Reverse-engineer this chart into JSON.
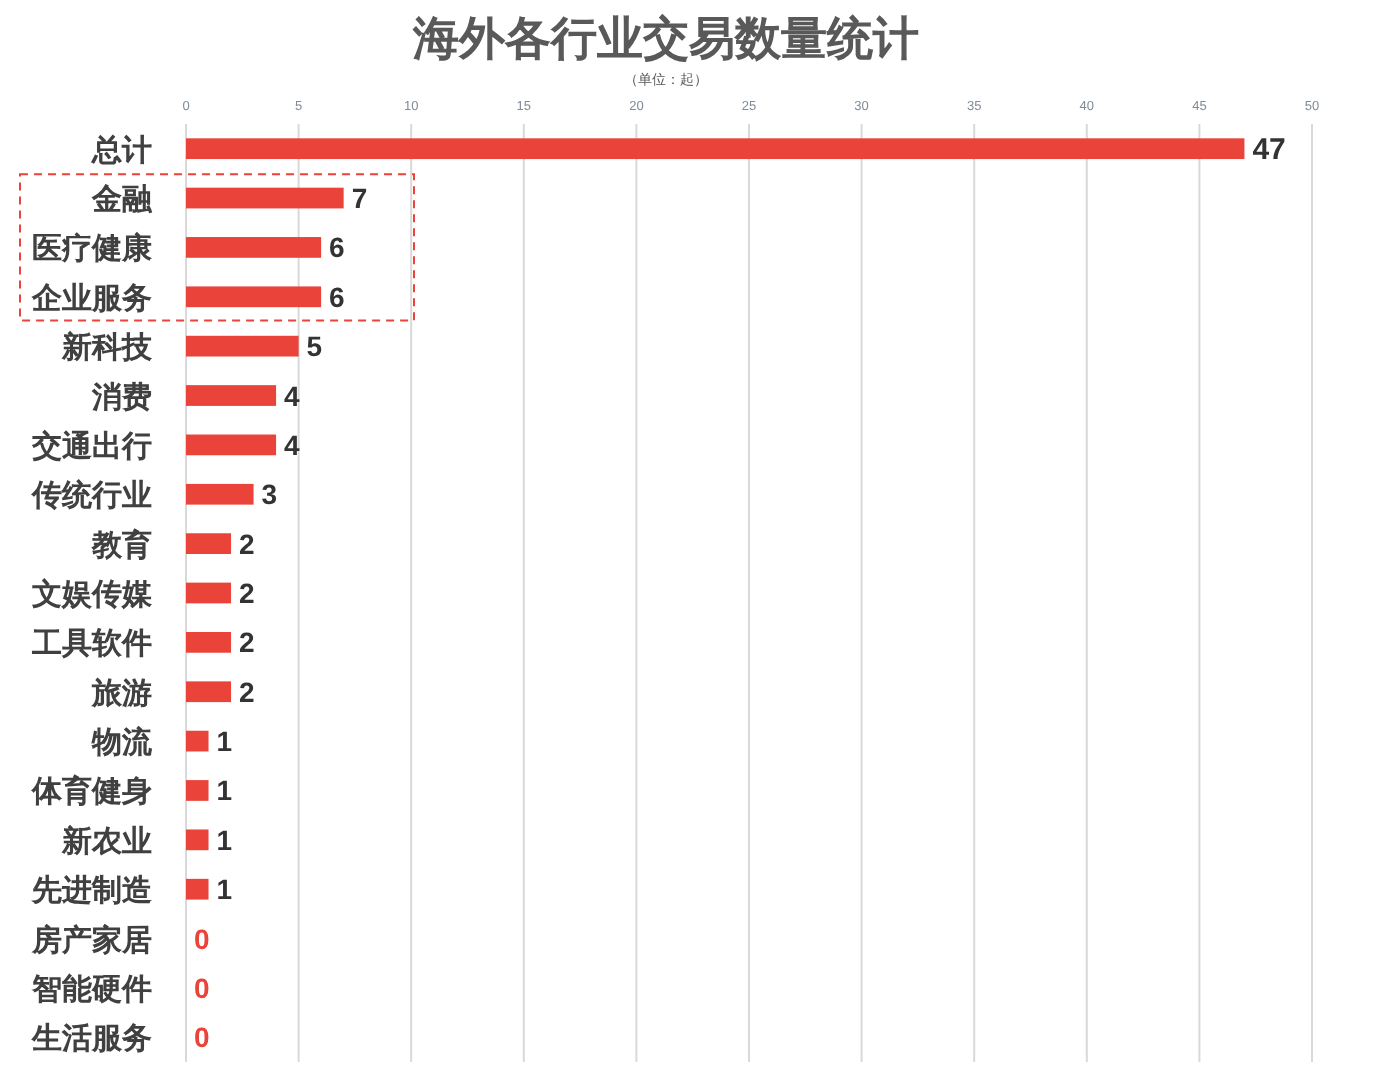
{
  "chart_data": {
    "type": "bar",
    "title": "海外各行业交易数量统计",
    "subtitle": "（单位：起）",
    "orientation": "horizontal",
    "categories": [
      "总计",
      "金融",
      "医疗健康",
      "企业服务",
      "新科技",
      "消费",
      "交通出行",
      "传统行业",
      "教育",
      "文娱传媒",
      "工具软件",
      "旅游",
      "物流",
      "体育健身",
      "新农业",
      "先进制造",
      "房产家居",
      "智能硬件",
      "生活服务"
    ],
    "values": [
      47,
      7,
      6,
      6,
      5,
      4,
      4,
      3,
      2,
      2,
      2,
      2,
      1,
      1,
      1,
      1,
      0,
      0,
      0
    ],
    "color": "#e9433a",
    "xlim": [
      0,
      50
    ],
    "xticks": [
      0,
      5,
      10,
      15,
      20,
      25,
      30,
      35,
      40,
      45,
      50
    ],
    "grid": "x",
    "data_labels": true
  }
}
